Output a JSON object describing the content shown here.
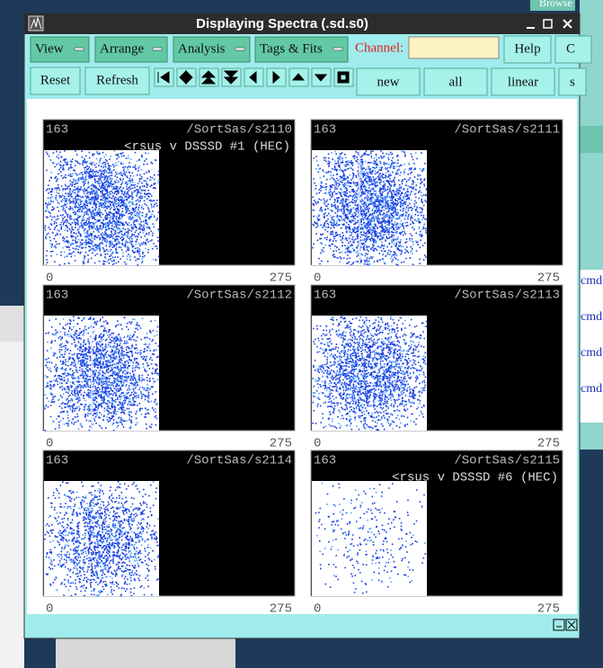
{
  "window": {
    "title": "Displaying Spectra (.sd.s0)"
  },
  "menubar": {
    "menus": [
      "View",
      "Arrange",
      "Analysis",
      "Tags & Fits"
    ],
    "channel_label": "Channel:",
    "buttons": [
      "Help",
      "C"
    ]
  },
  "toolbar": {
    "buttons": [
      "Reset",
      "Refresh"
    ],
    "mode_buttons": [
      "new",
      "all",
      "linear",
      "s"
    ]
  },
  "panels": [
    {
      "counts": 163,
      "name": "/SortSas/s2110",
      "subtitle": "<rsus v DSSSD #1 (HEC)",
      "x_min": 0,
      "x_max": 275
    },
    {
      "counts": 163,
      "name": "/SortSas/s2111",
      "x_min": 0,
      "x_max": 275
    },
    {
      "counts": 163,
      "name": "/SortSas/s2112",
      "x_min": 0,
      "x_max": 275
    },
    {
      "counts": 163,
      "name": "/SortSas/s2113",
      "x_min": 0,
      "x_max": 275
    },
    {
      "counts": 163,
      "name": "/SortSas/s2114",
      "x_min": 0,
      "x_max": 275
    },
    {
      "counts": 163,
      "name": "/SortSas/s2115",
      "subtitle": "<rsus v DSSSD #6 (HEC)",
      "x_min": 0,
      "x_max": 275
    }
  ],
  "background": {
    "browse": "Browse",
    "cmd": [
      "cmd",
      "cmd",
      "cmd",
      "cmd"
    ]
  }
}
